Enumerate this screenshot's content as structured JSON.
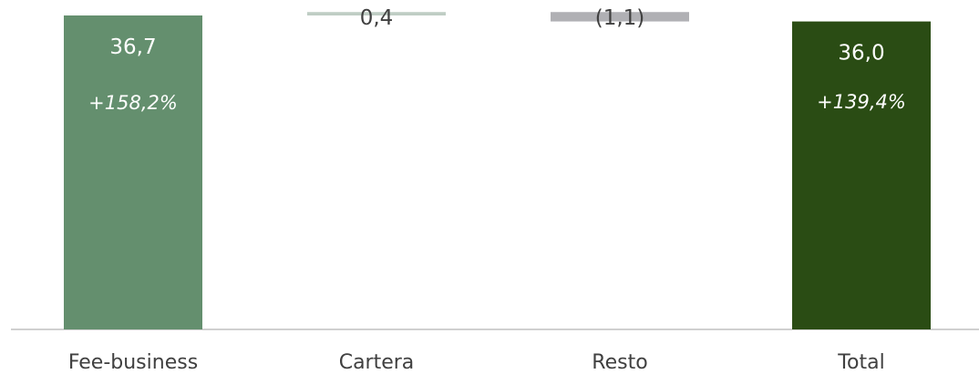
{
  "chart_data": {
    "type": "bar",
    "subtype": "waterfall",
    "categories": [
      "Fee-business",
      "Cartera",
      "Resto",
      "Total"
    ],
    "values": [
      36.7,
      0.4,
      -1.1,
      36.0
    ],
    "value_labels": [
      "36,7",
      "0,4",
      "(1,1)",
      "36,0"
    ],
    "growth_labels": [
      "+158,2%",
      "",
      "",
      "+139,4%"
    ],
    "bar_kinds": [
      "total",
      "delta",
      "delta",
      "total"
    ],
    "ylim": [
      0,
      36.7
    ],
    "title": "",
    "xlabel": "",
    "ylabel": "",
    "grid": false,
    "legend": "none",
    "colors": {
      "fee_business": "#648f6e",
      "cartera": "#bfcdc4",
      "resto": "#b0b0b4",
      "total": "#2a4c14",
      "axis": "#d0d0d0",
      "label_on_bar": "#ffffff",
      "label_above": "#404040",
      "category_text": "#404040"
    }
  }
}
